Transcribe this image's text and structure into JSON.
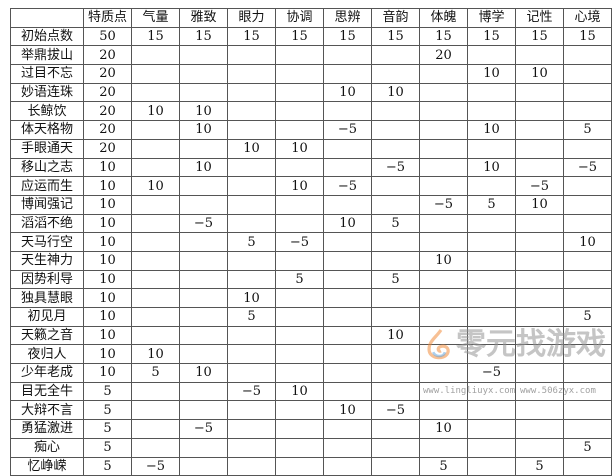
{
  "table": {
    "headers": [
      "",
      "特质点",
      "气量",
      "雅致",
      "眼力",
      "协调",
      "思辨",
      "音韵",
      "体魄",
      "博学",
      "记性",
      "心境"
    ],
    "rows": [
      [
        "初始点数",
        "50",
        "15",
        "15",
        "15",
        "15",
        "15",
        "15",
        "15",
        "15",
        "15",
        "15"
      ],
      [
        "举鼎拔山",
        "20",
        "",
        "",
        "",
        "",
        "",
        "",
        "20",
        "",
        "",
        ""
      ],
      [
        "过目不忘",
        "20",
        "",
        "",
        "",
        "",
        "",
        "",
        "",
        "10",
        "10",
        ""
      ],
      [
        "妙语连珠",
        "20",
        "",
        "",
        "",
        "",
        "10",
        "10",
        "",
        "",
        "",
        ""
      ],
      [
        "长鲸饮",
        "20",
        "10",
        "10",
        "",
        "",
        "",
        "",
        "",
        "",
        "",
        ""
      ],
      [
        "体天格物",
        "20",
        "",
        "10",
        "",
        "",
        "−5",
        "",
        "",
        "10",
        "",
        "5"
      ],
      [
        "手眼通天",
        "20",
        "",
        "",
        "10",
        "10",
        "",
        "",
        "",
        "",
        "",
        ""
      ],
      [
        "移山之志",
        "10",
        "",
        "10",
        "",
        "",
        "",
        "−5",
        "",
        "10",
        "",
        "−5"
      ],
      [
        "应运而生",
        "10",
        "10",
        "",
        "",
        "10",
        "−5",
        "",
        "",
        "",
        "−5",
        ""
      ],
      [
        "博闻强记",
        "10",
        "",
        "",
        "",
        "",
        "",
        "",
        "−5",
        "5",
        "10",
        ""
      ],
      [
        "滔滔不绝",
        "10",
        "",
        "−5",
        "",
        "",
        "10",
        "5",
        "",
        "",
        "",
        ""
      ],
      [
        "天马行空",
        "10",
        "",
        "",
        "5",
        "−5",
        "",
        "",
        "",
        "",
        "",
        "10"
      ],
      [
        "天生神力",
        "10",
        "",
        "",
        "",
        "",
        "",
        "",
        "10",
        "",
        "",
        ""
      ],
      [
        "因势利导",
        "10",
        "",
        "",
        "",
        "5",
        "",
        "5",
        "",
        "",
        "",
        ""
      ],
      [
        "独具慧眼",
        "10",
        "",
        "",
        "10",
        "",
        "",
        "",
        "",
        "",
        "",
        ""
      ],
      [
        "初见月",
        "10",
        "",
        "",
        "5",
        "",
        "",
        "",
        "",
        "",
        "",
        "5"
      ],
      [
        "天籁之音",
        "10",
        "",
        "",
        "",
        "",
        "",
        "10",
        "",
        "",
        "",
        ""
      ],
      [
        "夜归人",
        "10",
        "10",
        "",
        "",
        "",
        "",
        "",
        "",
        "",
        "",
        ""
      ],
      [
        "少年老成",
        "10",
        "5",
        "10",
        "",
        "",
        "",
        "",
        "",
        "−5",
        "",
        ""
      ],
      [
        "目无全牛",
        "5",
        "",
        "",
        "−5",
        "10",
        "",
        "",
        "",
        "",
        "",
        ""
      ],
      [
        "大辩不言",
        "5",
        "",
        "",
        "",
        "",
        "10",
        "−5",
        "",
        "",
        "",
        ""
      ],
      [
        "勇猛激进",
        "5",
        "",
        "−5",
        "",
        "",
        "",
        "",
        "10",
        "",
        "",
        ""
      ],
      [
        "痴心",
        "5",
        "",
        "",
        "",
        "",
        "",
        "",
        "",
        "",
        "",
        "5"
      ],
      [
        "忆峥嵘",
        "5",
        "−5",
        "",
        "",
        "",
        "",
        "",
        "5",
        "",
        "5",
        ""
      ]
    ]
  },
  "watermark": {
    "brand": "零元找游戏",
    "url1": "www.lingliuyx.com",
    "url2": "www.506zyx.com"
  }
}
